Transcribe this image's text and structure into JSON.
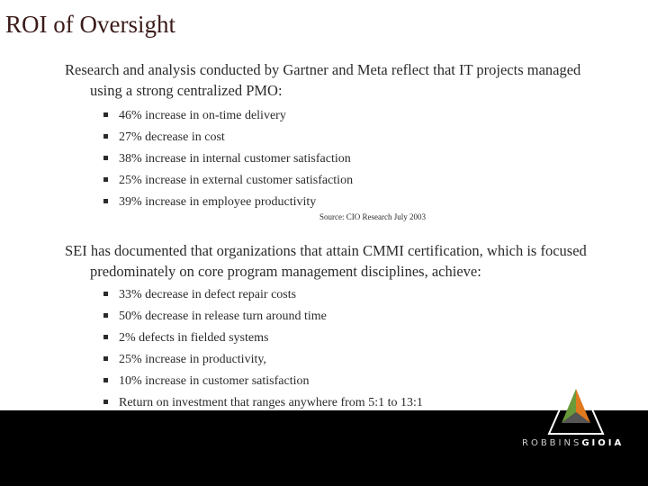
{
  "header": {
    "title": "ROI of Oversight"
  },
  "sections": [
    {
      "intro": "Research and analysis conducted by Gartner and Meta reflect that IT projects managed using a strong centralized PMO:",
      "bullets": [
        "46% increase in on-time delivery",
        "27% decrease in cost",
        "38% increase in internal customer satisfaction",
        "25% increase in external customer satisfaction",
        "39% increase in employee productivity"
      ],
      "source": "Source: CIO Research July 2003"
    },
    {
      "intro": "SEI has documented that organizations that attain CMMI certification, which is focused predominately on core program management disciplines, achieve:",
      "bullets": [
        "33% decrease in defect repair costs",
        "50% decrease in release turn around time",
        "2% defects in fielded systems",
        "25% increase in productivity,",
        "10% increase in customer satisfaction",
        "Return on investment that ranges anywhere from 5:1 to 13:1"
      ]
    }
  ],
  "logo": {
    "first": "ROBBINS",
    "second": "GIOIA"
  }
}
